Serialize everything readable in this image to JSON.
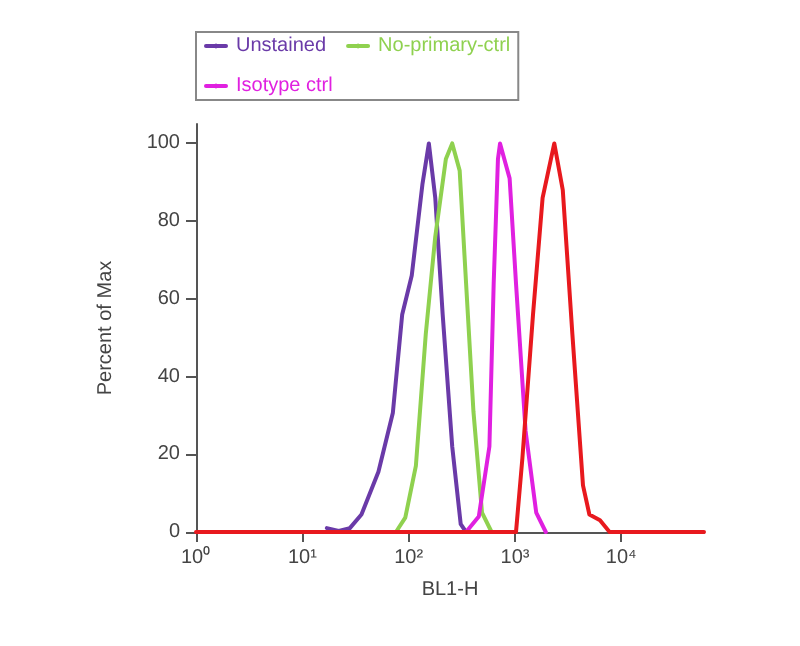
{
  "chart_data": {
    "type": "line",
    "xlabel": "BL1-H",
    "ylabel": "Percent of Max",
    "log": "x",
    "xlim": [
      1,
      60000
    ],
    "xticks": [
      {
        "value": 1,
        "label": "10⁰"
      },
      {
        "value": 10,
        "label": "10¹"
      },
      {
        "value": 100,
        "label": "10²"
      },
      {
        "value": 1000,
        "label": "10³"
      },
      {
        "value": 10000,
        "label": "10⁴"
      }
    ],
    "ylim": [
      0,
      105
    ],
    "yticks": [
      0,
      20,
      40,
      60,
      80,
      100
    ],
    "grid": false,
    "legend": "top left",
    "marker": "none",
    "line_style": "solid",
    "series": [
      {
        "color": "#e8191e",
        "x": [
          1,
          1023,
          1175,
          1479,
          1820,
          2344,
          2818,
          3467,
          4365,
          5012,
          6310,
          7762,
          60000
        ],
        "values": [
          0,
          0,
          19,
          56,
          86,
          100,
          88,
          51,
          12,
          4.5,
          3,
          0,
          0
        ]
      },
      {
        "name": "Unstained",
        "color": "#6a3aa8",
        "x": [
          17,
          22,
          28,
          36,
          52,
          71,
          87,
          107,
          135,
          155,
          178,
          209,
          257,
          309,
          347
        ],
        "values": [
          1,
          0.3,
          1,
          4.5,
          15.5,
          30.6,
          56,
          66,
          89.6,
          100,
          86,
          56,
          22,
          2,
          0
        ]
      },
      {
        "name": "No-primary-ctrl",
        "color": "#8fd14f",
        "x": [
          76,
          93,
          117,
          145,
          178,
          224,
          257,
          302,
          347,
          407,
          490,
          603
        ],
        "values": [
          0,
          3.7,
          17,
          51,
          76,
          96,
          100,
          93,
          64,
          31,
          5,
          0
        ]
      },
      {
        "name": "Isotype ctrl",
        "color": "#e020e0",
        "x": [
          347,
          457,
          575,
          631,
          692,
          724,
          891,
          1023,
          1259,
          1585,
          1950
        ],
        "values": [
          0,
          4,
          22,
          64,
          96,
          100,
          91,
          64,
          26,
          5,
          0
        ]
      }
    ]
  }
}
